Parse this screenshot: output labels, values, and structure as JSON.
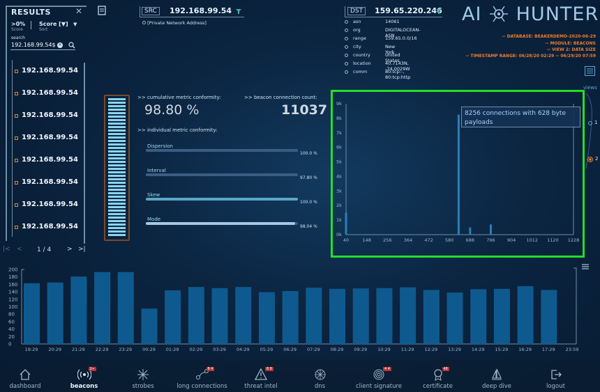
{
  "results": {
    "title": "RESULTS",
    "filter": {
      "value": ">0%",
      "label": "Score"
    },
    "sort": {
      "value": "Score [▼]",
      "label": "Sort"
    },
    "search_label": "search",
    "search_value": "192.168.99.54$",
    "items": [
      "192.168.99.54",
      "192.168.99.54",
      "192.168.99.54",
      "192.168.99.54",
      "192.168.99.54",
      "192.168.99.54",
      "192.168.99.54",
      "192.168.99.54"
    ],
    "pager": "1 / 4"
  },
  "src": {
    "label": "SRC",
    "ip": "192.168.99.54",
    "note": "[Private Network Address]"
  },
  "dst": {
    "label": "DST",
    "ip": "159.65.220.246",
    "rows": [
      {
        "k": "asn",
        "v": "14061"
      },
      {
        "k": "org",
        "v": "DIGITALOCEAN-ASN"
      },
      {
        "k": "range",
        "v": "159.65.0.0/16"
      },
      {
        "k": "city",
        "v": "New York"
      },
      {
        "k": "country",
        "v": "United States"
      },
      {
        "k": "location",
        "v": "40.7143N, -74.0029W"
      },
      {
        "k": "comm",
        "v": "80:tcp:-, 80:tcp:http"
      }
    ]
  },
  "logo": {
    "left": "AI",
    "right": "HUNTER"
  },
  "meta": [
    "-- DATABASE: BEAKERDEMO-2020-06-29",
    "-- MODULE: BEACONS",
    "-- VIEW 2: DATA SIZE",
    "-- TIMESTAMP RANGE: 06/28/20 02:29 -- 06/29/20 07:59"
  ],
  "conformity": {
    "cumulative_label": ">> cumulative metric conformity:",
    "cumulative_value": "98.80 %",
    "count_label": ">> beacon connection count:",
    "count_value": "11037",
    "individual_label": ">> individual metric conformity:",
    "metrics": [
      {
        "name": "Dispersion",
        "pct": "100.0 %",
        "frac": 1.0,
        "color": "#3b5d82"
      },
      {
        "name": "Interval",
        "pct": "97.80 %",
        "frac": 0.978,
        "color": "#3b5d82"
      },
      {
        "name": "Skew",
        "pct": "100.0 %",
        "frac": 1.0,
        "color": "#5aa7c9"
      },
      {
        "name": "Mode",
        "pct": "98.04 %",
        "frac": 0.9804,
        "color": "#a9c7e4"
      }
    ]
  },
  "views": {
    "label": "views",
    "one": "1",
    "two": "2"
  },
  "colors": {
    "accent": "#22e028",
    "orange": "#f07d2a",
    "bar": "#0e5a8f"
  },
  "chart_data": [
    {
      "type": "bar",
      "title": "",
      "x_ticks": [
        "40",
        "148",
        "256",
        "364",
        "472",
        "580",
        "688",
        "796",
        "904",
        "1012",
        "1120",
        "1228"
      ],
      "y_ticks": [
        "0k",
        "1k",
        "2k",
        "3k",
        "4k",
        "5k",
        "6k",
        "7k",
        "8k",
        "9k"
      ],
      "x": [
        40,
        628,
        688,
        796
      ],
      "values": [
        1500,
        8256,
        500,
        700
      ],
      "xlim": [
        40,
        1228
      ],
      "ylim": [
        0,
        9000
      ],
      "tooltip": "8256 connections with 628 byte payloads"
    },
    {
      "type": "bar",
      "title": "",
      "categories": [
        "19:29",
        "20:29",
        "21:29",
        "22:29",
        "23:29",
        "00:29",
        "01:29",
        "02:29",
        "03:29",
        "04:29",
        "05:29",
        "06:29",
        "07:29",
        "08:29",
        "09:29",
        "10:29",
        "11:29",
        "12:29",
        "13:29",
        "14:29",
        "15:29",
        "16:29",
        "17:29",
        "23:59"
      ],
      "x_ticks": [
        "19:29",
        "20:29",
        "21:29",
        "22:29",
        "23:29",
        "00:29",
        "01:29",
        "02:29",
        "03:29",
        "04:29",
        "05:29",
        "06:29",
        "07:29",
        "08:29",
        "09:29",
        "10:29",
        "11:29",
        "12:29",
        "13:29",
        "14:29",
        "15:29",
        "16:29",
        "17:29",
        "23:59"
      ],
      "values": [
        163,
        165,
        181,
        193,
        193,
        95,
        144,
        153,
        150,
        153,
        139,
        142,
        151,
        148,
        149,
        150,
        152,
        145,
        138,
        147,
        148,
        155,
        145,
        146
      ],
      "y_ticks": [
        "0",
        "20",
        "40",
        "60",
        "80",
        "100",
        "120",
        "140",
        "160",
        "180",
        "200"
      ],
      "ylim": [
        0,
        200
      ]
    }
  ],
  "nav": [
    {
      "label": "dashboard",
      "icon": "home-icon"
    },
    {
      "label": "beacons",
      "icon": "beacon-icon",
      "badge": "2+",
      "active": true
    },
    {
      "label": "strobes",
      "icon": "strobe-icon"
    },
    {
      "label": "long connections",
      "icon": "connection-icon",
      "badge": "8 4"
    },
    {
      "label": "threat intel",
      "icon": "warning-icon",
      "badge": "8 8"
    },
    {
      "label": "dns",
      "icon": "web-icon"
    },
    {
      "label": "client signature",
      "icon": "fingerprint-icon",
      "badge": "4 4"
    },
    {
      "label": "certificate",
      "icon": "certificate-icon",
      "badge": "48"
    },
    {
      "label": "deep dive",
      "icon": "sail-icon"
    },
    {
      "label": "logout",
      "icon": "logout-icon"
    }
  ]
}
